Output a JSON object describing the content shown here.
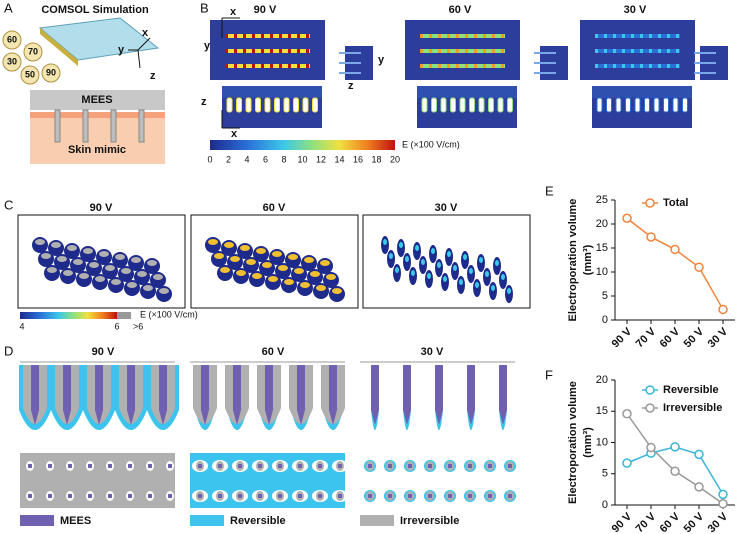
{
  "panels": {
    "A": {
      "label": "A",
      "title": "COMSOL Simulation",
      "axes": [
        "x",
        "y",
        "z"
      ],
      "voltages": [
        "60",
        "70",
        "30",
        "50",
        "90"
      ],
      "layers": [
        "MEES",
        "Skin mimic"
      ]
    },
    "B": {
      "label": "B",
      "titles": [
        "90 V",
        "60 V",
        "30 V"
      ],
      "axes": [
        "x",
        "y",
        "y",
        "z",
        "z",
        "x"
      ],
      "colorbar": {
        "ticks": [
          0,
          2,
          4,
          6,
          8,
          10,
          12,
          14,
          16,
          18,
          20
        ],
        "label": "E (×100 V/cm)"
      }
    },
    "C": {
      "label": "C",
      "titles": [
        "90 V",
        "60 V",
        "30 V"
      ],
      "colorbar": {
        "ticks": [
          "4",
          "6",
          ">6"
        ],
        "label": "E (×100 V/cm)"
      }
    },
    "D": {
      "label": "D",
      "titles": [
        "90 V",
        "60 V",
        "30 V"
      ],
      "legend": [
        "MEES",
        "Reversible",
        "Irreversible"
      ]
    },
    "E": {
      "label": "E"
    },
    "F": {
      "label": "F"
    }
  },
  "chart_data": [
    {
      "type": "line",
      "y_label": "Electroporation volume",
      "y_unit": "(mm³)",
      "categories": [
        "90 V",
        "70 V",
        "60 V",
        "50 V",
        "30 V"
      ],
      "series": [
        {
          "name": "Total",
          "color": "#f0843c",
          "values": [
            21.2,
            17.3,
            14.7,
            11.0,
            2.2
          ]
        }
      ],
      "ylim": [
        0,
        25
      ],
      "yticks": [
        0,
        5,
        10,
        15,
        20,
        25
      ],
      "legend": "top-right"
    },
    {
      "type": "line",
      "y_label": "Electroporation volume",
      "y_unit": "(mm³)",
      "categories": [
        "90 V",
        "70 V",
        "60 V",
        "50 V",
        "30 V"
      ],
      "series": [
        {
          "name": "Reversible",
          "color": "#3ab4d8",
          "values": [
            6.7,
            8.3,
            9.3,
            8.1,
            1.7
          ]
        },
        {
          "name": "Irreversible",
          "color": "#999999",
          "values": [
            14.6,
            9.2,
            5.4,
            2.9,
            0.2
          ]
        }
      ],
      "ylim": [
        0,
        20
      ],
      "yticks": [
        0,
        5,
        10,
        15,
        20
      ],
      "legend": "top-right"
    }
  ]
}
